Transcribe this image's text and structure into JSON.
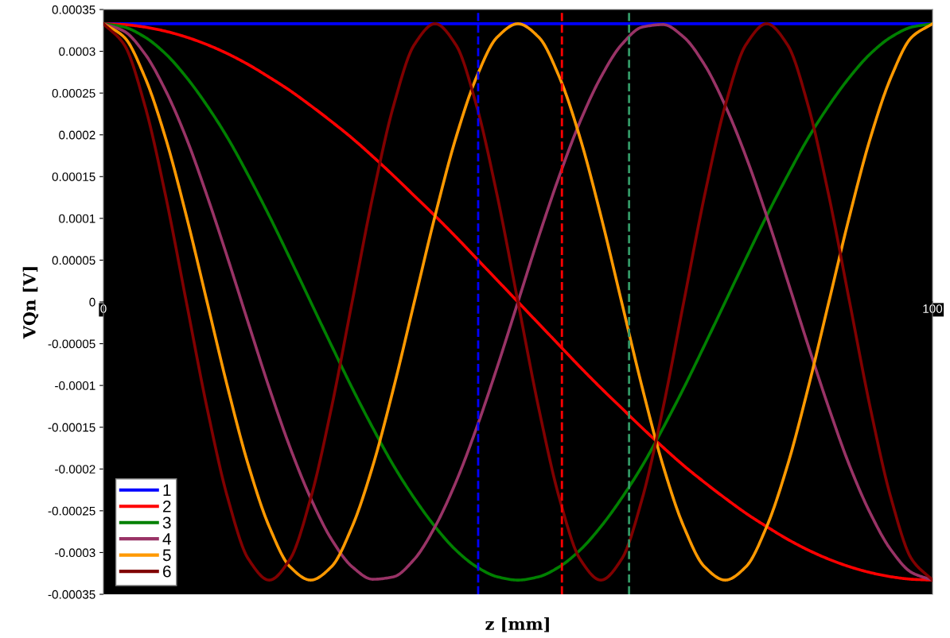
{
  "chart_data": {
    "type": "line",
    "xlabel": "z [mm]",
    "ylabel": "VQn [V]",
    "x": [
      0,
      2.5,
      5,
      7.5,
      10,
      12.5,
      15,
      17.5,
      20,
      22.5,
      25,
      27.5,
      30,
      32.5,
      35,
      37.5,
      40,
      42.5,
      45,
      47.5,
      50,
      52.5,
      55,
      57.5,
      60,
      62.5,
      65,
      67.5,
      70,
      72.5,
      75,
      77.5,
      80,
      82.5,
      85,
      87.5,
      90,
      92.5,
      95,
      97.5,
      100
    ],
    "xlim": [
      0,
      100
    ],
    "xticks": [
      0,
      100
    ],
    "ylim": [
      -0.00035,
      0.00035
    ],
    "yticks": [
      {
        "value": -0.00035,
        "label": "-0.00035"
      },
      {
        "value": -0.0003,
        "label": "-0.0003"
      },
      {
        "value": -0.00025,
        "label": "-0.00025"
      },
      {
        "value": -0.0002,
        "label": "-0.0002"
      },
      {
        "value": -0.00015,
        "label": "-0.00015"
      },
      {
        "value": -0.0001,
        "label": "-0.0001"
      },
      {
        "value": -5e-05,
        "label": "-0.00005"
      },
      {
        "value": 0,
        "label": "0"
      },
      {
        "value": 5e-05,
        "label": "0.00005"
      },
      {
        "value": 0.0001,
        "label": "0.0001"
      },
      {
        "value": 0.00015,
        "label": "0.00015"
      },
      {
        "value": 0.0002,
        "label": "0.0002"
      },
      {
        "value": 0.00025,
        "label": "0.00025"
      },
      {
        "value": 0.0003,
        "label": "0.0003"
      },
      {
        "value": 0.00035,
        "label": "0.00035"
      }
    ],
    "grid": false,
    "legend": "bottom left",
    "marker": "none",
    "line_style": "solid",
    "series": [
      {
        "name": "1",
        "color": "#0000ff",
        "values": [
          0.000333,
          0.000333,
          0.000333,
          0.000333,
          0.000333,
          0.000333,
          0.000333,
          0.000333,
          0.000333,
          0.000333,
          0.000333,
          0.000333,
          0.000333,
          0.000333,
          0.000333,
          0.000333,
          0.000333,
          0.000333,
          0.000333,
          0.000333,
          0.000333,
          0.000333,
          0.000333,
          0.000333,
          0.000333,
          0.000333,
          0.000333,
          0.000333,
          0.000333,
          0.000333,
          0.000333,
          0.000333,
          0.000333,
          0.000333,
          0.000333,
          0.000333,
          0.000333,
          0.000333,
          0.000333,
          0.000333,
          0.000333
        ]
      },
      {
        "name": "2",
        "color": "#ff0000",
        "values": [
          0.000333,
          0.000332,
          0.000329,
          0.000324,
          0.000317,
          0.000308,
          0.000297,
          0.000284,
          0.000269,
          0.000253,
          0.000235,
          0.000216,
          0.000196,
          0.000174,
          0.000151,
          0.000127,
          0.000103,
          7.8e-05,
          5.2e-05,
          2.6e-05,
          0,
          -2.6e-05,
          -5.2e-05,
          -7.8e-05,
          -0.000103,
          -0.000127,
          -0.000151,
          -0.000174,
          -0.000196,
          -0.000216,
          -0.000235,
          -0.000253,
          -0.000269,
          -0.000284,
          -0.000297,
          -0.000308,
          -0.000317,
          -0.000324,
          -0.000329,
          -0.000332,
          -0.000333
        ]
      },
      {
        "name": "3",
        "color": "#008000",
        "values": [
          0.000333,
          0.000329,
          0.000317,
          0.000297,
          0.000269,
          0.000235,
          0.000196,
          0.000151,
          0.000103,
          5.2e-05,
          0,
          -5.2e-05,
          -0.000103,
          -0.000151,
          -0.000196,
          -0.000235,
          -0.000269,
          -0.000297,
          -0.000317,
          -0.000329,
          -0.000333,
          -0.000329,
          -0.000317,
          -0.000297,
          -0.000269,
          -0.000235,
          -0.000196,
          -0.000151,
          -0.000103,
          -5.2e-05,
          0,
          5.2e-05,
          0.000103,
          0.000151,
          0.000196,
          0.000235,
          0.000269,
          0.000297,
          0.000317,
          0.000329,
          0.000333
        ]
      },
      {
        "name": "4",
        "color": "#993366",
        "values": [
          0.000333,
          0.000324,
          0.000297,
          0.000253,
          0.000196,
          0.000127,
          5.2e-05,
          -2.6e-05,
          -0.000103,
          -0.000174,
          -0.000235,
          -0.000284,
          -0.000317,
          -0.000332,
          -0.000329,
          -0.000308,
          -0.000269,
          -0.000216,
          -0.000151,
          -7.8e-05,
          0,
          7.8e-05,
          0.000151,
          0.000216,
          0.000269,
          0.000308,
          0.000329,
          0.000332,
          0.000317,
          0.000284,
          0.000235,
          0.000174,
          0.000103,
          2.6e-05,
          -5.2e-05,
          -0.000127,
          -0.000196,
          -0.000253,
          -0.000297,
          -0.000324,
          -0.000333
        ]
      },
      {
        "name": "5",
        "color": "#ff9900",
        "values": [
          0.000333,
          0.000317,
          0.000269,
          0.000196,
          0.000103,
          0,
          -0.000103,
          -0.000196,
          -0.000269,
          -0.000317,
          -0.000333,
          -0.000317,
          -0.000269,
          -0.000196,
          -0.000103,
          0,
          0.000103,
          0.000196,
          0.000269,
          0.000317,
          0.000333,
          0.000317,
          0.000269,
          0.000196,
          0.000103,
          0,
          -0.000103,
          -0.000196,
          -0.000269,
          -0.000317,
          -0.000333,
          -0.000317,
          -0.000269,
          -0.000196,
          -0.000103,
          0,
          0.000103,
          0.000196,
          0.000269,
          0.000317,
          0.000333
        ]
      },
      {
        "name": "6",
        "color": "#800000",
        "values": [
          0.000333,
          0.000308,
          0.000235,
          0.000127,
          0,
          -0.000127,
          -0.000235,
          -0.000308,
          -0.000333,
          -0.000308,
          -0.000235,
          -0.000127,
          0,
          0.000127,
          0.000235,
          0.000308,
          0.000333,
          0.000308,
          0.000235,
          0.000127,
          0,
          -0.000127,
          -0.000235,
          -0.000308,
          -0.000333,
          -0.000308,
          -0.000235,
          -0.000127,
          0,
          0.000127,
          0.000235,
          0.000308,
          0.000333,
          0.000308,
          0.000235,
          0.000127,
          0,
          -0.000127,
          -0.000235,
          -0.000308,
          -0.000333
        ]
      }
    ],
    "ref_lines": [
      {
        "axis": "x",
        "value": 45.2,
        "color": "#0000ff",
        "line_style": "dashed"
      },
      {
        "axis": "x",
        "value": 55.3,
        "color": "#ff0000",
        "line_style": "dashed"
      },
      {
        "axis": "x",
        "value": 63.4,
        "color": "#339966",
        "line_style": "dashed"
      }
    ]
  }
}
